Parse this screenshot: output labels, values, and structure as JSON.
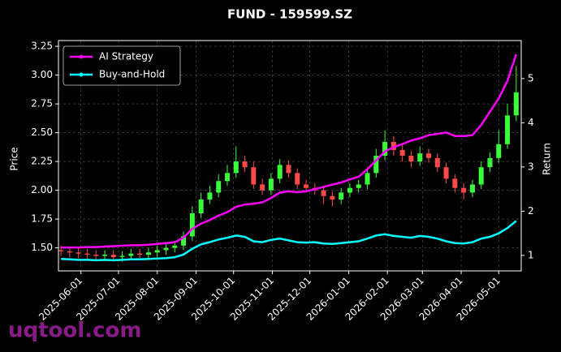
{
  "chart_data": {
    "type": "candlestick",
    "title": "FUND - 159599.SZ",
    "y_label": "Price",
    "y2_label": "Return",
    "watermark": "uqtool.com",
    "x": [
      "2025-05-16",
      "2025-05-23",
      "2025-05-30",
      "2025-06-06",
      "2025-06-13",
      "2025-06-20",
      "2025-06-27",
      "2025-07-04",
      "2025-07-11",
      "2025-07-18",
      "2025-07-25",
      "2025-08-01",
      "2025-08-08",
      "2025-08-15",
      "2025-08-22",
      "2025-08-29",
      "2025-09-05",
      "2025-09-12",
      "2025-09-19",
      "2025-09-26",
      "2025-10-03",
      "2025-10-10",
      "2025-10-17",
      "2025-10-24",
      "2025-10-31",
      "2025-11-07",
      "2025-11-14",
      "2025-11-21",
      "2025-11-28",
      "2025-12-05",
      "2025-12-12",
      "2025-12-19",
      "2025-12-26",
      "2026-01-02",
      "2026-01-09",
      "2026-01-16",
      "2026-01-23",
      "2026-01-30",
      "2026-02-06",
      "2026-02-13",
      "2026-02-20",
      "2026-02-27",
      "2026-03-06",
      "2026-03-13",
      "2026-03-20",
      "2026-03-27",
      "2026-04-03",
      "2026-04-10",
      "2026-04-17",
      "2026-04-24",
      "2026-05-01",
      "2026-05-08",
      "2026-05-15"
    ],
    "open": [
      1.48,
      1.47,
      1.46,
      1.45,
      1.44,
      1.43,
      1.44,
      1.42,
      1.43,
      1.45,
      1.44,
      1.46,
      1.48,
      1.5,
      1.52,
      1.6,
      1.8,
      1.92,
      1.98,
      2.08,
      2.15,
      2.25,
      2.2,
      2.05,
      2.0,
      2.1,
      2.22,
      2.15,
      2.05,
      2.02,
      2.0,
      1.95,
      1.92,
      1.98,
      2.02,
      2.05,
      2.15,
      2.3,
      2.42,
      2.35,
      2.3,
      2.25,
      2.32,
      2.28,
      2.2,
      2.1,
      2.02,
      1.98,
      2.05,
      2.2,
      2.28,
      2.4,
      2.65
    ],
    "high": [
      1.52,
      1.51,
      1.5,
      1.49,
      1.48,
      1.48,
      1.48,
      1.47,
      1.49,
      1.49,
      1.5,
      1.52,
      1.54,
      1.56,
      1.64,
      1.86,
      1.98,
      2.04,
      2.14,
      2.22,
      2.38,
      2.3,
      2.25,
      2.1,
      2.15,
      2.27,
      2.26,
      2.19,
      2.09,
      2.06,
      2.04,
      1.99,
      2.02,
      2.06,
      2.09,
      2.2,
      2.36,
      2.52,
      2.47,
      2.4,
      2.34,
      2.38,
      2.36,
      2.32,
      2.24,
      2.14,
      2.06,
      2.09,
      2.25,
      2.33,
      2.52,
      2.75,
      3.08
    ],
    "low": [
      1.43,
      1.42,
      1.41,
      1.4,
      1.39,
      1.39,
      1.38,
      1.38,
      1.39,
      1.4,
      1.4,
      1.42,
      1.44,
      1.46,
      1.48,
      1.56,
      1.76,
      1.88,
      1.94,
      2.04,
      2.11,
      2.16,
      2.01,
      1.96,
      1.96,
      2.06,
      2.11,
      2.01,
      1.98,
      1.96,
      1.88,
      1.86,
      1.88,
      1.94,
      1.98,
      2.01,
      2.11,
      2.26,
      2.3,
      2.25,
      2.2,
      2.21,
      2.24,
      2.16,
      2.06,
      1.98,
      1.92,
      1.94,
      2.01,
      2.16,
      2.24,
      2.36,
      2.6
    ],
    "close": [
      1.47,
      1.46,
      1.45,
      1.44,
      1.43,
      1.44,
      1.42,
      1.43,
      1.45,
      1.44,
      1.46,
      1.48,
      1.5,
      1.52,
      1.6,
      1.8,
      1.92,
      1.98,
      2.08,
      2.15,
      2.25,
      2.2,
      2.05,
      2.0,
      2.1,
      2.22,
      2.15,
      2.05,
      2.02,
      2.0,
      1.95,
      1.92,
      1.98,
      2.02,
      2.05,
      2.15,
      2.3,
      2.42,
      2.35,
      2.3,
      2.25,
      2.32,
      2.28,
      2.2,
      2.1,
      2.02,
      1.98,
      2.05,
      2.2,
      2.28,
      2.4,
      2.65,
      2.85
    ],
    "up_color": "#39ff3a",
    "down_color": "#ff4a4a",
    "series": [
      {
        "name": "AI Strategy",
        "color": "#ff00ff",
        "axis": "y2",
        "values": [
          1.18,
          1.18,
          1.18,
          1.19,
          1.19,
          1.2,
          1.21,
          1.22,
          1.23,
          1.23,
          1.24,
          1.26,
          1.28,
          1.3,
          1.4,
          1.6,
          1.72,
          1.8,
          1.9,
          1.98,
          2.1,
          2.15,
          2.17,
          2.2,
          2.3,
          2.42,
          2.45,
          2.43,
          2.45,
          2.5,
          2.55,
          2.6,
          2.65,
          2.72,
          2.78,
          2.95,
          3.15,
          3.35,
          3.45,
          3.52,
          3.6,
          3.65,
          3.72,
          3.75,
          3.78,
          3.7,
          3.7,
          3.72,
          3.95,
          4.25,
          4.55,
          4.95,
          5.55
        ]
      },
      {
        "name": "Buy-and-Hold",
        "color": "#00ffff",
        "axis": "y2",
        "values": [
          0.92,
          0.91,
          0.9,
          0.9,
          0.89,
          0.9,
          0.89,
          0.9,
          0.91,
          0.91,
          0.92,
          0.93,
          0.94,
          0.96,
          1.02,
          1.15,
          1.25,
          1.3,
          1.36,
          1.4,
          1.45,
          1.42,
          1.32,
          1.3,
          1.35,
          1.38,
          1.34,
          1.3,
          1.29,
          1.3,
          1.27,
          1.26,
          1.28,
          1.3,
          1.32,
          1.38,
          1.45,
          1.48,
          1.44,
          1.42,
          1.4,
          1.44,
          1.42,
          1.38,
          1.32,
          1.28,
          1.27,
          1.3,
          1.38,
          1.42,
          1.5,
          1.62,
          1.78
        ]
      }
    ],
    "xlim": [
      "2025-05-14",
      "2026-05-19"
    ],
    "xticks": [
      "2025-06-01",
      "2025-07-01",
      "2025-08-01",
      "2025-09-01",
      "2025-10-01",
      "2025-11-01",
      "2025-12-01",
      "2026-01-01",
      "2026-02-01",
      "2026-03-01",
      "2026-04-01",
      "2026-05-01"
    ],
    "ylim": [
      1.3,
      3.3
    ],
    "yticks": [
      {
        "value": 1.5,
        "label": "1.50"
      },
      1.75,
      {
        "value": 2,
        "label": "2.00"
      },
      2.25,
      {
        "value": 2.5,
        "label": "2.50"
      },
      2.75,
      {
        "value": 3,
        "label": "3.00"
      },
      3.25
    ],
    "y2lim": [
      0.65,
      5.86
    ],
    "y2ticks": [
      1,
      2,
      3,
      4,
      5
    ],
    "grid": true,
    "legend": "upper left"
  }
}
